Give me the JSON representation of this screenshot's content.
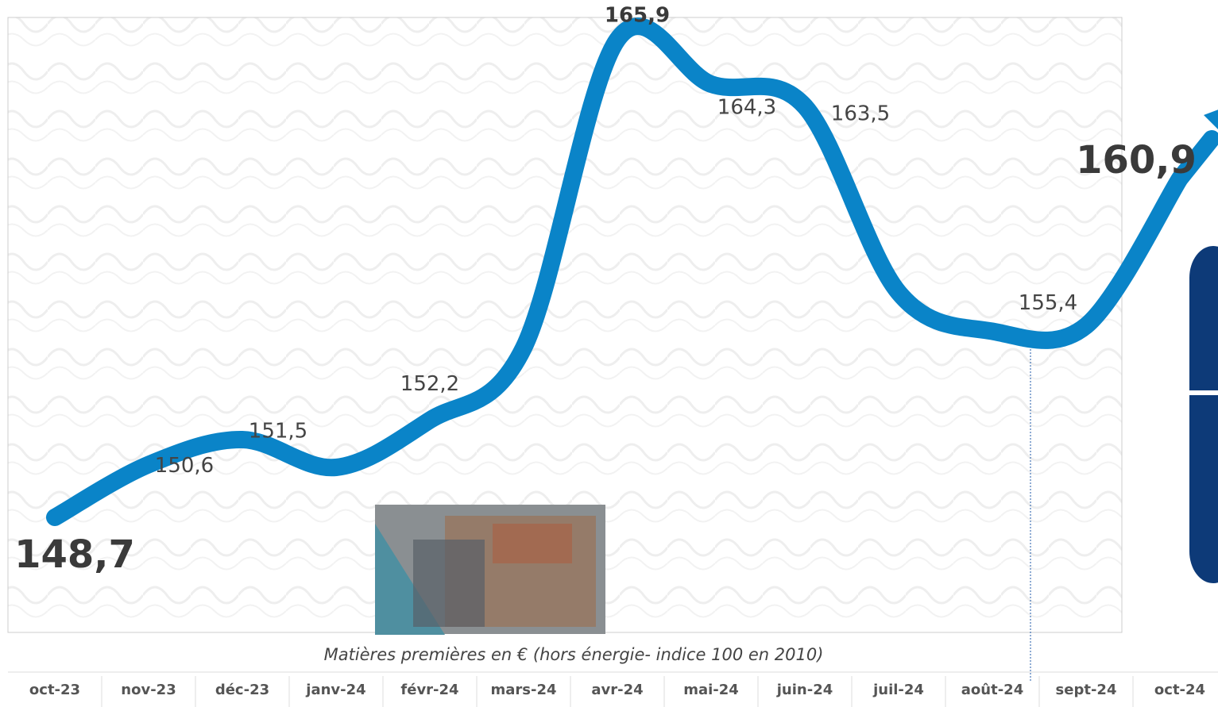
{
  "chart_data": {
    "type": "line",
    "subtitle": "Matières premières en € (hors énergie- indice 100 en 2010)",
    "categories": [
      "oct-23",
      "nov-23",
      "déc-23",
      "janv-24",
      "févr-24",
      "mars-24",
      "avr-24",
      "mai-24",
      "juin-24",
      "juil-24",
      "août-24",
      "sept-24",
      "oct-24"
    ],
    "series": [
      {
        "name": null,
        "color": "#0a84c8",
        "values": [
          148.7,
          150.6,
          151.5,
          150.5,
          152.2,
          154.8,
          165.9,
          164.3,
          163.5,
          156.8,
          155.4,
          155.6,
          160.9
        ],
        "value_labels": [
          "148,7",
          "150,6",
          "151,5",
          null,
          "152,2",
          null,
          "165,9",
          "164,3",
          "163,5",
          null,
          "155,4",
          null,
          "160,9"
        ]
      }
    ],
    "ylim": [
      146.7,
      166.7
    ]
  }
}
